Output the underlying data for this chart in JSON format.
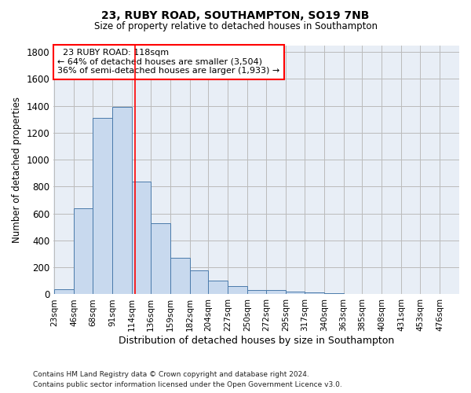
{
  "title1": "23, RUBY ROAD, SOUTHAMPTON, SO19 7NB",
  "title2": "Size of property relative to detached houses in Southampton",
  "xlabel": "Distribution of detached houses by size in Southampton",
  "ylabel": "Number of detached properties",
  "footnote1": "Contains HM Land Registry data © Crown copyright and database right 2024.",
  "footnote2": "Contains public sector information licensed under the Open Government Licence v3.0.",
  "annotation_line1": "  23 RUBY ROAD: 118sqm",
  "annotation_line2": "← 64% of detached houses are smaller (3,504)",
  "annotation_line3": "36% of semi-detached houses are larger (1,933) →",
  "bar_color": "#c8d9ee",
  "bar_edge_color": "#4a7aaa",
  "vline_color": "red",
  "vline_x": 118,
  "categories": [
    "23sqm",
    "46sqm",
    "68sqm",
    "91sqm",
    "114sqm",
    "136sqm",
    "159sqm",
    "182sqm",
    "204sqm",
    "227sqm",
    "250sqm",
    "272sqm",
    "295sqm",
    "317sqm",
    "340sqm",
    "363sqm",
    "385sqm",
    "408sqm",
    "431sqm",
    "453sqm",
    "476sqm"
  ],
  "bin_edges": [
    23,
    46,
    68,
    91,
    114,
    136,
    159,
    182,
    204,
    227,
    250,
    272,
    295,
    317,
    340,
    363,
    385,
    408,
    431,
    453,
    476,
    499
  ],
  "values": [
    40,
    640,
    1310,
    1390,
    840,
    530,
    270,
    180,
    100,
    60,
    30,
    30,
    20,
    15,
    10,
    5,
    5,
    5,
    3,
    2,
    2
  ],
  "ylim": [
    0,
    1850
  ],
  "yticks": [
    0,
    200,
    400,
    600,
    800,
    1000,
    1200,
    1400,
    1600,
    1800
  ],
  "annotation_box_color": "white",
  "annotation_box_edge": "red",
  "grid_color": "#bbbbbb",
  "background_color": "#e8eef6"
}
